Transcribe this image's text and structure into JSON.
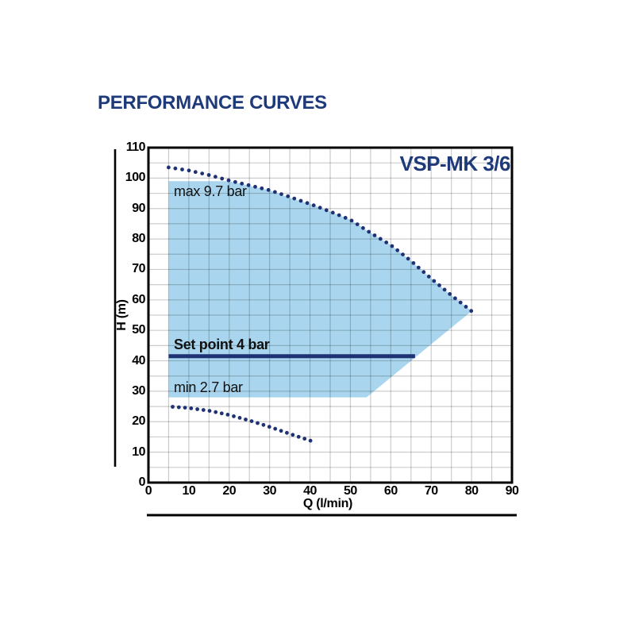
{
  "page": {
    "title": "PERFORMANCE CURVES",
    "background": "#ffffff"
  },
  "chart_data": {
    "type": "area",
    "title": "PERFORMANCE CURVES",
    "model_label": "VSP-MK 3/6",
    "xlabel": "Q (l/min)",
    "ylabel": "H (m)",
    "xlim": [
      0,
      90
    ],
    "ylim": [
      0,
      110
    ],
    "x_ticks": [
      0,
      10,
      20,
      30,
      40,
      50,
      60,
      70,
      80,
      90
    ],
    "y_ticks": [
      0,
      10,
      20,
      30,
      40,
      50,
      60,
      70,
      80,
      90,
      100,
      110
    ],
    "grid_step": 5,
    "grid_on": true,
    "series": [
      {
        "name": "max 9.7 bar",
        "style": "dotted",
        "points": [
          [
            5,
            103.5
          ],
          [
            10,
            102.5
          ],
          [
            15,
            101
          ],
          [
            20,
            99.2
          ],
          [
            25,
            97.6
          ],
          [
            30,
            96
          ],
          [
            35,
            93.8
          ],
          [
            40,
            91.5
          ],
          [
            45,
            89
          ],
          [
            50,
            86.3
          ],
          [
            55,
            82
          ],
          [
            60,
            78
          ],
          [
            65,
            72.8
          ],
          [
            70,
            67
          ],
          [
            75,
            61.5
          ],
          [
            80,
            56.3
          ]
        ]
      },
      {
        "name": "min 2.7 bar",
        "style": "dotted",
        "points": [
          [
            6,
            24.9
          ],
          [
            10,
            24.5
          ],
          [
            15,
            23.6
          ],
          [
            20,
            22.2
          ],
          [
            25,
            20.4
          ],
          [
            30,
            18.3
          ],
          [
            35,
            16
          ],
          [
            40.5,
            13.6
          ]
        ]
      },
      {
        "name": "Set point 4 bar",
        "style": "solid-thick",
        "points": [
          [
            5,
            41.5
          ],
          [
            66,
            41.5
          ]
        ]
      }
    ],
    "envelope_polygon": [
      [
        5,
        28
      ],
      [
        5,
        99
      ],
      [
        20,
        99
      ],
      [
        25,
        97.5
      ],
      [
        30,
        96
      ],
      [
        35,
        93.5
      ],
      [
        40,
        91.5
      ],
      [
        45,
        89
      ],
      [
        50,
        86.3
      ],
      [
        55,
        82
      ],
      [
        60,
        78
      ],
      [
        65,
        72.8
      ],
      [
        70,
        67
      ],
      [
        75,
        61.5
      ],
      [
        80,
        56.3
      ],
      [
        54,
        28
      ]
    ],
    "colors": {
      "navy": "#1f3273",
      "title_navy": "#1e3a7a",
      "fill_blue": "#a9d6ee",
      "grid": "rgba(0,0,0,0.2)",
      "axis_black": "#000000"
    }
  }
}
